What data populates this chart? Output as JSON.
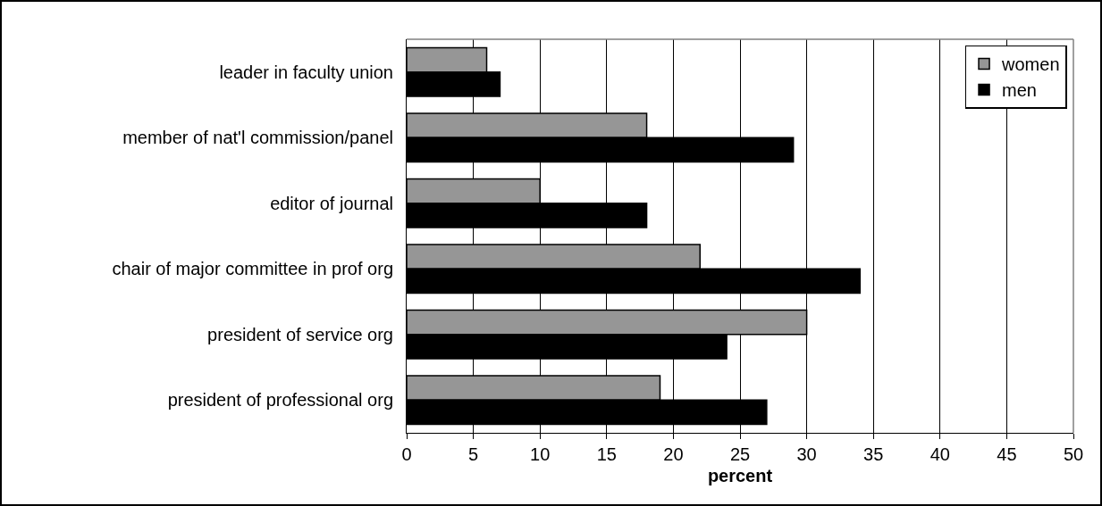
{
  "chart_data": {
    "type": "bar",
    "orientation": "horizontal",
    "xlabel": "percent",
    "categories": [
      "leader in faculty union",
      "member of nat'l commission/panel",
      "editor of journal",
      "chair of major committee in prof org",
      "president of service org",
      "president of professional org"
    ],
    "series": [
      {
        "name": "women",
        "color": "#969696",
        "values": [
          6,
          18,
          10,
          22,
          30,
          19
        ]
      },
      {
        "name": "men",
        "color": "#000000",
        "values": [
          7,
          29,
          18,
          34,
          24,
          27
        ]
      }
    ],
    "xlim": [
      0,
      50
    ],
    "xticks": [
      0,
      5,
      10,
      15,
      20,
      25,
      30,
      35,
      40,
      45,
      50
    ],
    "grid": "x",
    "legend": "top right"
  }
}
